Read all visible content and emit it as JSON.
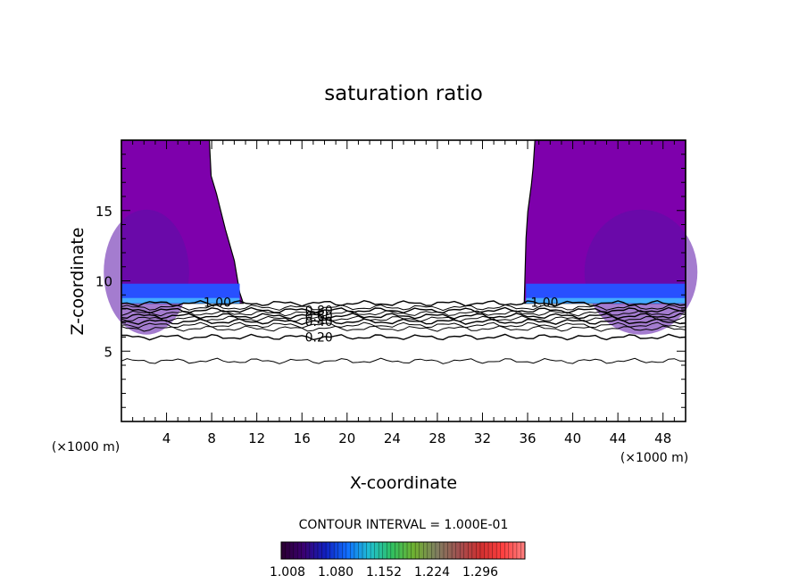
{
  "chart_data": {
    "type": "heatmap",
    "title": "saturation ratio",
    "xlabel": "X-coordinate",
    "ylabel": "Z-coordinate",
    "x_unit": "(×1000 m)",
    "z_unit": "(×1000 m)",
    "xlim": [
      0,
      50
    ],
    "ylim": [
      0,
      20
    ],
    "x_ticks": [
      4,
      8,
      12,
      16,
      20,
      24,
      28,
      32,
      36,
      40,
      44,
      48
    ],
    "y_ticks": [
      5,
      10,
      15
    ],
    "contour_note": "CONTOUR INTERVAL = 1.000E-01",
    "colorbar": {
      "labels": [
        "1.008",
        "1.080",
        "1.152",
        "1.224",
        "1.296"
      ],
      "colors": [
        "#2a0030",
        "#3a0070",
        "#1020c0",
        "#1070ff",
        "#20c0d0",
        "#30c060",
        "#70b030",
        "#808060",
        "#a05050",
        "#d03030",
        "#ff4040",
        "#ff8080"
      ]
    },
    "contour_lines": [
      {
        "label": "0.20",
        "z": 6.0
      },
      {
        "label": "0.40",
        "z": 7.1
      },
      {
        "label": "0.60",
        "z": 7.5
      },
      {
        "label": "0.80",
        "z": 7.9
      },
      {
        "label": "1.00",
        "z": 8.4
      }
    ],
    "extra_contour_z": [
      4.3,
      6.6,
      6.85,
      7.3,
      7.7,
      8.1
    ],
    "supersaturated_regions": [
      {
        "side": "left",
        "x_range": [
          0,
          10.8
        ],
        "z_range": [
          8.4,
          20
        ]
      },
      {
        "side": "right",
        "x_range": [
          35.7,
          50
        ],
        "z_range": [
          8.4,
          20
        ]
      }
    ],
    "colors": {
      "region_base": "#7e00ac",
      "region_mid": "#5a10a8",
      "band_blue": "#2850ff",
      "band_light": "#50d0ff"
    }
  }
}
